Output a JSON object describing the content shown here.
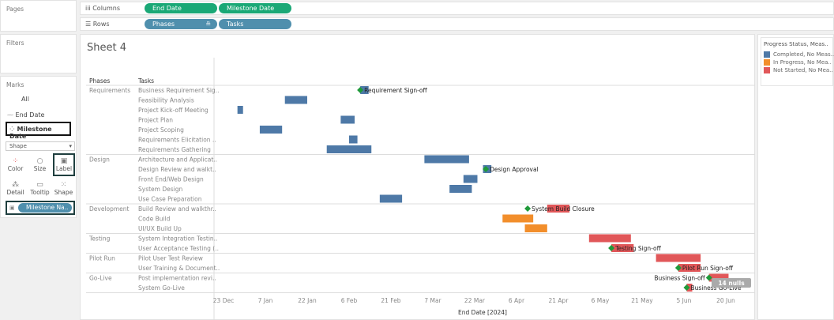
{
  "pages": {
    "label": "Pages"
  },
  "filters": {
    "label": "Filters"
  },
  "shelves": {
    "columns_label": "Columns",
    "columns": [
      "End Date",
      "Milestone Date"
    ],
    "rows_label": "Rows",
    "rows": [
      "Phases",
      "Tasks"
    ]
  },
  "marks": {
    "label": "Marks",
    "all": "All",
    "end_date": "End Date",
    "milestone_date": "Milestone Date",
    "mark_type": "Shape",
    "cards": [
      "Color",
      "Size",
      "Label",
      "Detail",
      "Tooltip",
      "Shape"
    ],
    "label_pill": "Milestone Na.."
  },
  "sheet": {
    "title": "Sheet 4",
    "phases_header": "Phases",
    "tasks_header": "Tasks"
  },
  "legend": {
    "title": "Progress Status, Meas..",
    "items": [
      {
        "label": "Completed, No Meas..",
        "color": "#4e79a7"
      },
      {
        "label": "In Progress, No Mea..",
        "color": "#f28e2b"
      },
      {
        "label": "Not Started, No Mea..",
        "color": "#e15759"
      }
    ]
  },
  "colors": {
    "milestone": "#1f9a3a"
  },
  "chart_data": {
    "type": "gantt",
    "xlabel": "End Date [2024]",
    "xlim": [
      "2023-12-20",
      "2024-06-30"
    ],
    "x_ticks": [
      "23 Dec",
      "7 Jan",
      "22 Jan",
      "6 Feb",
      "21 Feb",
      "7 Mar",
      "22 Mar",
      "6 Apr",
      "21 Apr",
      "6 May",
      "21 May",
      "5 Jun",
      "20 Jun"
    ],
    "nulls_badge": "14 nulls",
    "phases": [
      "Requirements",
      "Design",
      "Development",
      "Testing",
      "Pilot Run",
      "Go-Live"
    ],
    "rows": [
      {
        "phase": "Requirements",
        "task": "Business Requirement Sig..",
        "start": "2024-02-10",
        "end": "2024-02-12",
        "status": "Completed",
        "milestone": "2024-02-10",
        "milestone_name": "Requirement Sign-off"
      },
      {
        "phase": "Requirements",
        "task": "Feasibility Analysis",
        "start": "2024-01-14",
        "end": "2024-01-21",
        "status": "Completed"
      },
      {
        "phase": "Requirements",
        "task": "Project Kick-off Meeting",
        "start": "2023-12-28",
        "end": "2023-12-29",
        "status": "Completed"
      },
      {
        "phase": "Requirements",
        "task": "Project Plan",
        "start": "2024-02-03",
        "end": "2024-02-07",
        "status": "Completed"
      },
      {
        "phase": "Requirements",
        "task": "Project Scoping",
        "start": "2024-01-05",
        "end": "2024-01-12",
        "status": "Completed"
      },
      {
        "phase": "Requirements",
        "task": "Requirements Elicitation ..",
        "start": "2024-02-06",
        "end": "2024-02-08",
        "status": "Completed"
      },
      {
        "phase": "Requirements",
        "task": "Requirements Gathering",
        "start": "2024-01-29",
        "end": "2024-02-13",
        "status": "Completed"
      },
      {
        "phase": "Design",
        "task": "Architecture and Applicat..",
        "start": "2024-03-04",
        "end": "2024-03-19",
        "status": "Completed"
      },
      {
        "phase": "Design",
        "task": "Design Review and walkt..",
        "start": "2024-03-25",
        "end": "2024-03-27",
        "status": "Completed",
        "milestone": "2024-03-26",
        "milestone_name": "Design Approval"
      },
      {
        "phase": "Design",
        "task": "Front End/Web Design",
        "start": "2024-03-18",
        "end": "2024-03-22",
        "status": "Completed"
      },
      {
        "phase": "Design",
        "task": "System Design",
        "start": "2024-03-13",
        "end": "2024-03-20",
        "status": "Completed"
      },
      {
        "phase": "Design",
        "task": "Use Case Preparation",
        "start": "2024-02-17",
        "end": "2024-02-24",
        "status": "Completed"
      },
      {
        "phase": "Development",
        "task": "Build Review and walkthr..",
        "start": "2024-04-17",
        "end": "2024-04-24",
        "status": "Not Started",
        "milestone": "2024-04-10",
        "milestone_name": "System Build Closure"
      },
      {
        "phase": "Development",
        "task": "Code Build",
        "start": "2024-04-01",
        "end": "2024-04-11",
        "status": "In Progress"
      },
      {
        "phase": "Development",
        "task": "UI/UX Build Up",
        "start": "2024-04-09",
        "end": "2024-04-16",
        "status": "In Progress"
      },
      {
        "phase": "Testing",
        "task": "System Integration Testin..",
        "start": "2024-05-02",
        "end": "2024-05-16",
        "status": "Not Started"
      },
      {
        "phase": "Testing",
        "task": "User Acceptance Testing (..",
        "start": "2024-05-10",
        "end": "2024-05-17",
        "status": "Not Started",
        "milestone": "2024-05-10",
        "milestone_name": "Testing Sign-off"
      },
      {
        "phase": "Pilot Run",
        "task": "Pilot User Test Review",
        "start": "2024-05-26",
        "end": "2024-06-10",
        "status": "Not Started"
      },
      {
        "phase": "Pilot Run",
        "task": "User Training & Document..",
        "start": "2024-06-03",
        "end": "2024-06-10",
        "status": "Not Started",
        "milestone": "2024-06-03",
        "milestone_name": "Pilot Run Sign-off"
      },
      {
        "phase": "Go-Live",
        "task": "Post implementation revi..",
        "start": "2024-06-14",
        "end": "2024-06-20",
        "status": "Not Started",
        "milestone": "2024-06-14",
        "milestone_name": "Business Sign-off"
      },
      {
        "phase": "Go-Live",
        "task": "System Go-Live",
        "start": "2024-06-06",
        "end": "2024-06-07",
        "status": "Not Started",
        "milestone": "2024-06-06",
        "milestone_name": "Business Go-Live"
      }
    ]
  }
}
